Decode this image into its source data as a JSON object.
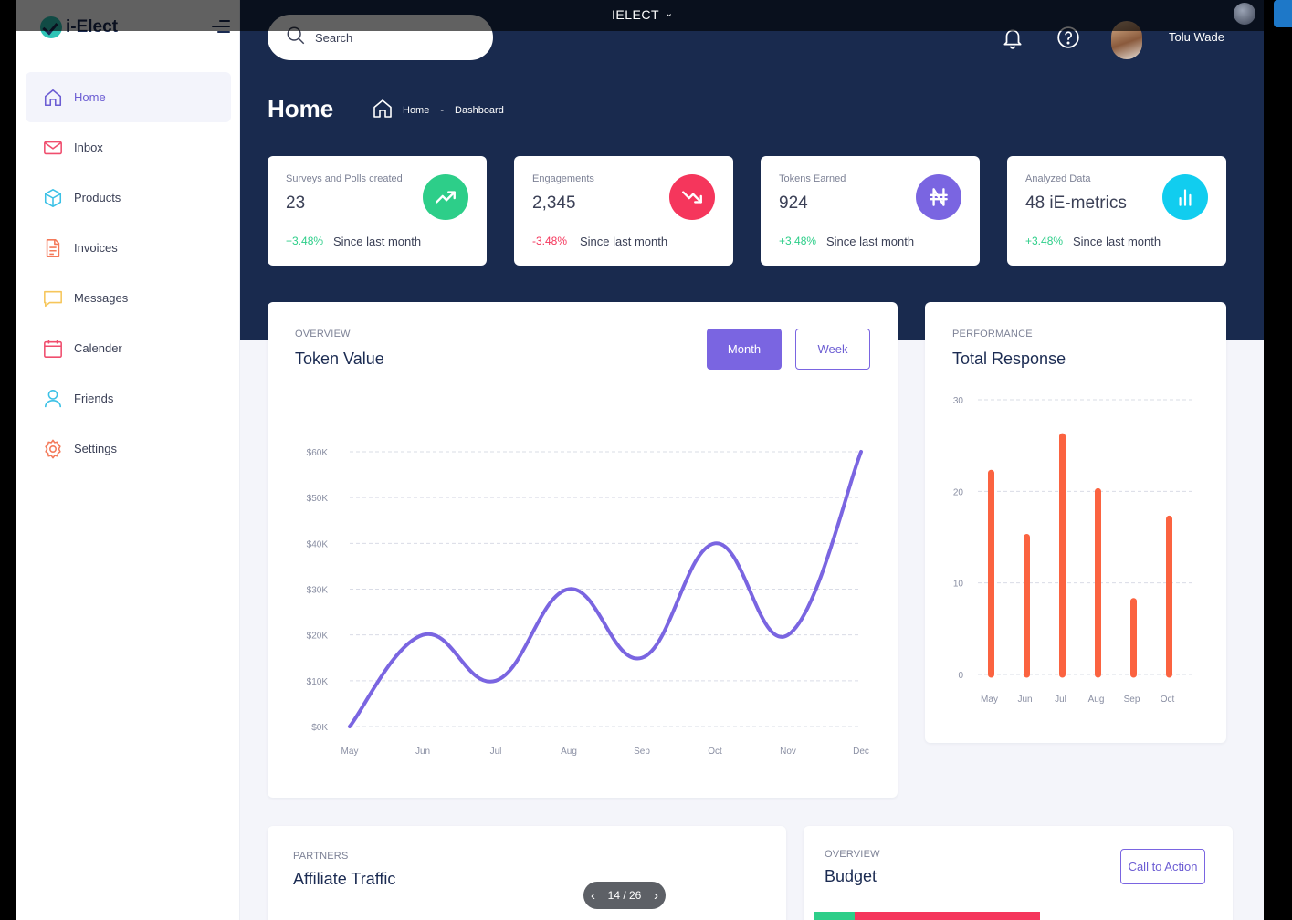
{
  "window": {
    "title": "IELECT",
    "caret": "⌄"
  },
  "brand": {
    "name": "i-Elect"
  },
  "sidebar": {
    "items": [
      {
        "label": "Home",
        "icon": "home-icon",
        "active": true,
        "color": "#6c5dd3"
      },
      {
        "label": "Inbox",
        "icon": "mail-icon",
        "active": false,
        "color": "#f04e6e"
      },
      {
        "label": "Products",
        "icon": "box-icon",
        "active": false,
        "color": "#3cc1e6"
      },
      {
        "label": "Invoices",
        "icon": "file-icon",
        "active": false,
        "color": "#f47a5a"
      },
      {
        "label": "Messages",
        "icon": "message-icon",
        "active": false,
        "color": "#f6c65b"
      },
      {
        "label": "Calender",
        "icon": "calendar-icon",
        "active": false,
        "color": "#f04e6e"
      },
      {
        "label": "Friends",
        "icon": "user-icon",
        "active": false,
        "color": "#3cc1e6"
      },
      {
        "label": "Settings",
        "icon": "gear-icon",
        "active": false,
        "color": "#f47a5a"
      }
    ]
  },
  "header": {
    "search_placeholder": "Search",
    "user_name": "Tolu Wade",
    "page_title": "Home",
    "breadcrumb": [
      "Home",
      "-",
      "Dashboard"
    ]
  },
  "stats": [
    {
      "label": "Surveys and Polls created",
      "value": "23",
      "delta": "+3.48%",
      "since": "Since last month",
      "trend": "up",
      "badge_color": "#2dce89",
      "icon": "trend-up-icon"
    },
    {
      "label": "Engagements",
      "value": "2,345",
      "delta": "-3.48%",
      "since": "Since last month",
      "trend": "down",
      "badge_color": "#f5365c",
      "icon": "trend-down-icon"
    },
    {
      "label": "Tokens Earned",
      "value": "924",
      "delta": "+3.48%",
      "since": "Since last month",
      "trend": "up",
      "badge_color": "#7a65e1",
      "icon": "naira-icon"
    },
    {
      "label": "Analyzed Data",
      "value": "48 iE-metrics",
      "delta": "+3.48%",
      "since": "Since last month",
      "trend": "up",
      "badge_color": "#11cdef",
      "icon": "bar-chart-icon"
    }
  ],
  "colors": {
    "band": "#192a4e",
    "accent": "#7a65e1",
    "positive": "#2dce89",
    "negative": "#f5365c",
    "bar": "#fb6340"
  },
  "token_panel": {
    "kicker": "OVERVIEW",
    "title": "Token Value",
    "month_label": "Month",
    "week_label": "Week"
  },
  "response_panel": {
    "kicker": "PERFORMANCE",
    "title": "Total Response"
  },
  "affiliate_panel": {
    "kicker": "PARTNERS",
    "title": "Affiliate Traffic"
  },
  "budget_panel": {
    "kicker": "OVERVIEW",
    "title": "Budget",
    "cta_label": "Call to Action"
  },
  "pager": {
    "text": "14 / 26"
  },
  "chart_data": [
    {
      "type": "line",
      "title": "Token Value",
      "categories": [
        "May",
        "Jun",
        "Jul",
        "Aug",
        "Sep",
        "Oct",
        "Nov",
        "Dec"
      ],
      "values": [
        0,
        20,
        10,
        30,
        15,
        40,
        20,
        60
      ],
      "tick_labels_y": [
        "$0K",
        "$10K",
        "$20K",
        "$30K",
        "$40K",
        "$50K",
        "$60K"
      ],
      "ylim": [
        0,
        60
      ],
      "grid": true,
      "color": "#7a65e1"
    },
    {
      "type": "bar",
      "title": "Total Response",
      "categories": [
        "May",
        "Jun",
        "Jul",
        "Aug",
        "Sep",
        "Oct"
      ],
      "values": [
        22,
        15,
        26,
        20,
        8,
        17
      ],
      "tick_labels_y": [
        "0",
        "10",
        "20",
        "30"
      ],
      "ylim": [
        0,
        30
      ],
      "grid": true,
      "color": "#fb6340"
    }
  ]
}
